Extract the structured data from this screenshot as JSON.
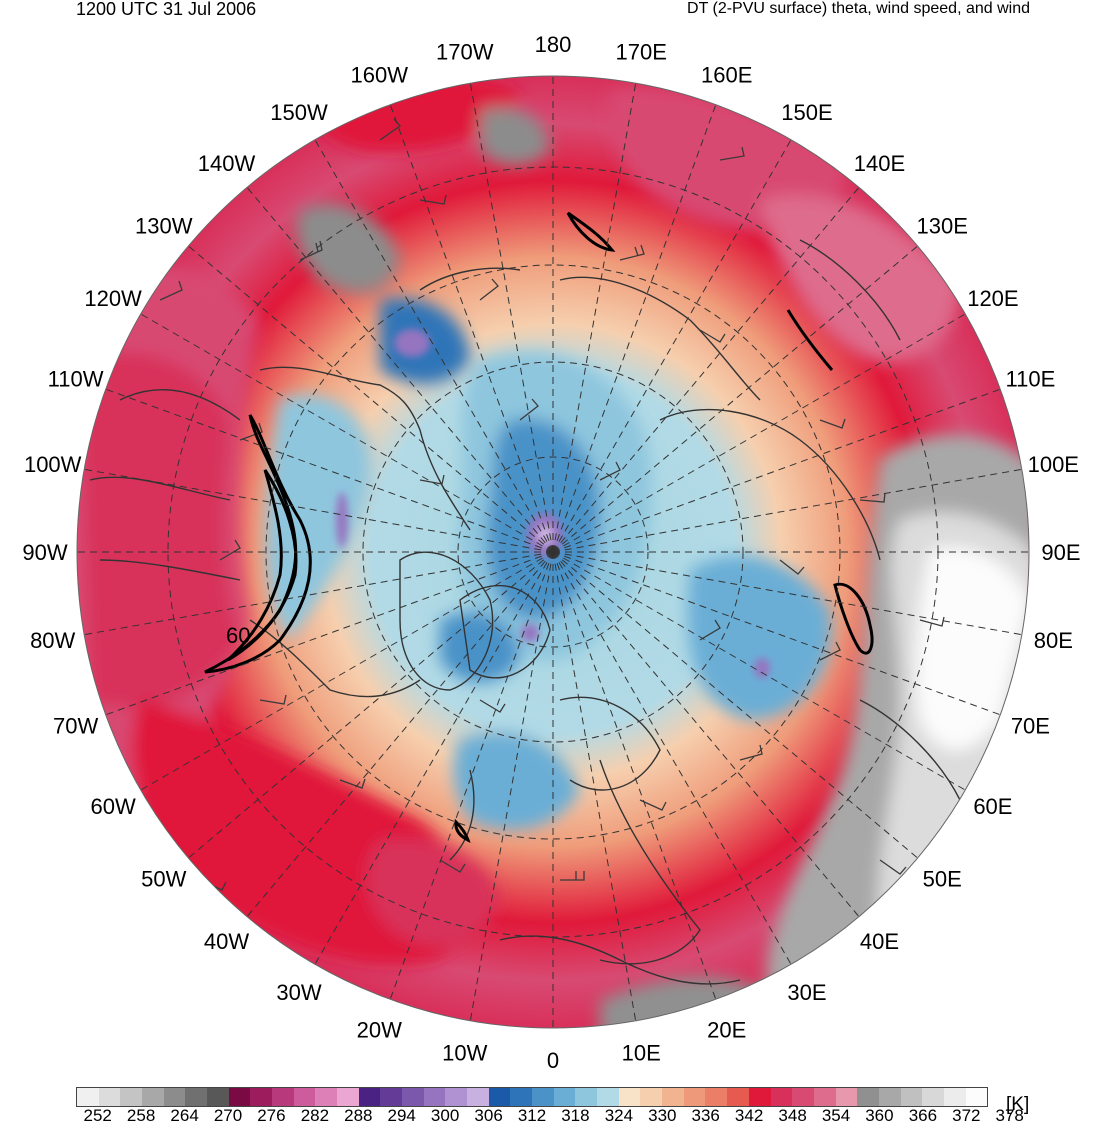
{
  "header": {
    "valid_time": "1200 UTC 31 Jul 2006",
    "product": "DT (2-PVU surface) theta, wind speed, and wind"
  },
  "map": {
    "projection": "north-polar-stereographic",
    "longitude_labels": [
      "180",
      "170E",
      "160E",
      "150E",
      "140E",
      "130E",
      "120E",
      "110E",
      "100E",
      "90E",
      "80E",
      "70E",
      "60E",
      "50E",
      "40E",
      "30E",
      "20E",
      "10E",
      "0",
      "10W",
      "20W",
      "30W",
      "40W",
      "50W",
      "60W",
      "70W",
      "80W",
      "90W",
      "100W",
      "110W",
      "120W",
      "130W",
      "140W",
      "150W",
      "160W",
      "170W"
    ],
    "jet_contour_label": "60",
    "colors": {
      "tropical_red": "#e0193a",
      "subtropical_pink": "#d84a72",
      "midlat_salmon": "#ef9c7a",
      "polar_peach": "#f6cfae",
      "arctic_lightblue": "#a7d6e0",
      "arctic_blue": "#5c9ed0",
      "deep_blue": "#2a5aa8",
      "polar_purple": "#9a6ec3",
      "high_theta_gray": "#8c8c8c",
      "contour_black": "#000000",
      "coast_gray": "#333333"
    }
  },
  "colorbar": {
    "unit": "[K]",
    "tick_labels": [
      "252",
      "258",
      "264",
      "270",
      "276",
      "282",
      "288",
      "294",
      "300",
      "306",
      "312",
      "318",
      "324",
      "330",
      "336",
      "342",
      "348",
      "354",
      "360",
      "366",
      "372",
      "378"
    ],
    "colors": [
      "#f0f0f0",
      "#dcdcdc",
      "#c4c4c4",
      "#a8a8a8",
      "#8c8c8c",
      "#707070",
      "#585858",
      "#7a0a44",
      "#9c1c5e",
      "#b83a7c",
      "#cc5c9c",
      "#de80b8",
      "#eca6d2",
      "#4a2284",
      "#643c98",
      "#7c58ac",
      "#9674c0",
      "#b092d2",
      "#c8b0e0",
      "#1a5aa8",
      "#2e74b8",
      "#4a92c8",
      "#6aaed6",
      "#8ec6de",
      "#b2dae6",
      "#f8e2c8",
      "#f6cfae",
      "#f2b490",
      "#ee9a7a",
      "#ea7e66",
      "#e65a50",
      "#e0193a",
      "#d8305a",
      "#d84a72",
      "#de6c8c",
      "#e898ac",
      "#909090",
      "#a8a8a8",
      "#c0c0c0",
      "#d8d8d8",
      "#ececec",
      "#fcfcfc"
    ]
  }
}
